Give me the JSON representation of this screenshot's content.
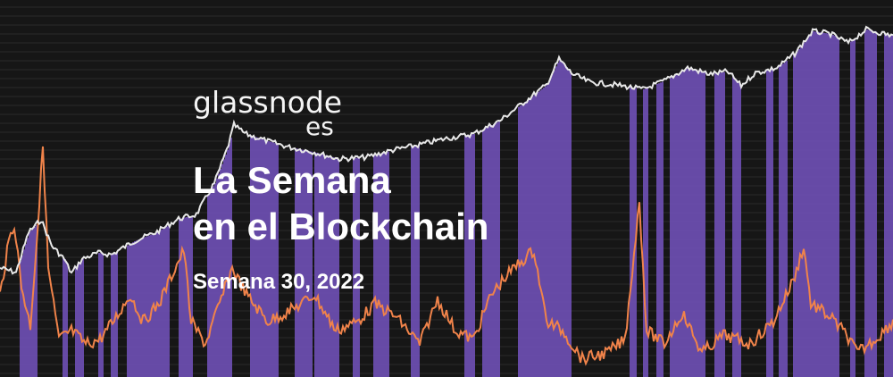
{
  "colors": {
    "background": "#161616",
    "band": "#6e4fb3",
    "price_line": "#e8e8e8",
    "metric_line": "#f0834a"
  },
  "brand": {
    "logo_text": "glassnode",
    "logo_subtext": "es"
  },
  "headline": {
    "line1": "La Semana",
    "line2": "en el Blockchain"
  },
  "subtitle": "Semana 30, 2022",
  "background_chart": {
    "series": [
      {
        "color": "#e8e8e8",
        "shape": "rising price-like line"
      },
      {
        "color": "#f0834a",
        "shape": "oscillating indicator line"
      }
    ],
    "bands_color": "#6e4fb3"
  }
}
